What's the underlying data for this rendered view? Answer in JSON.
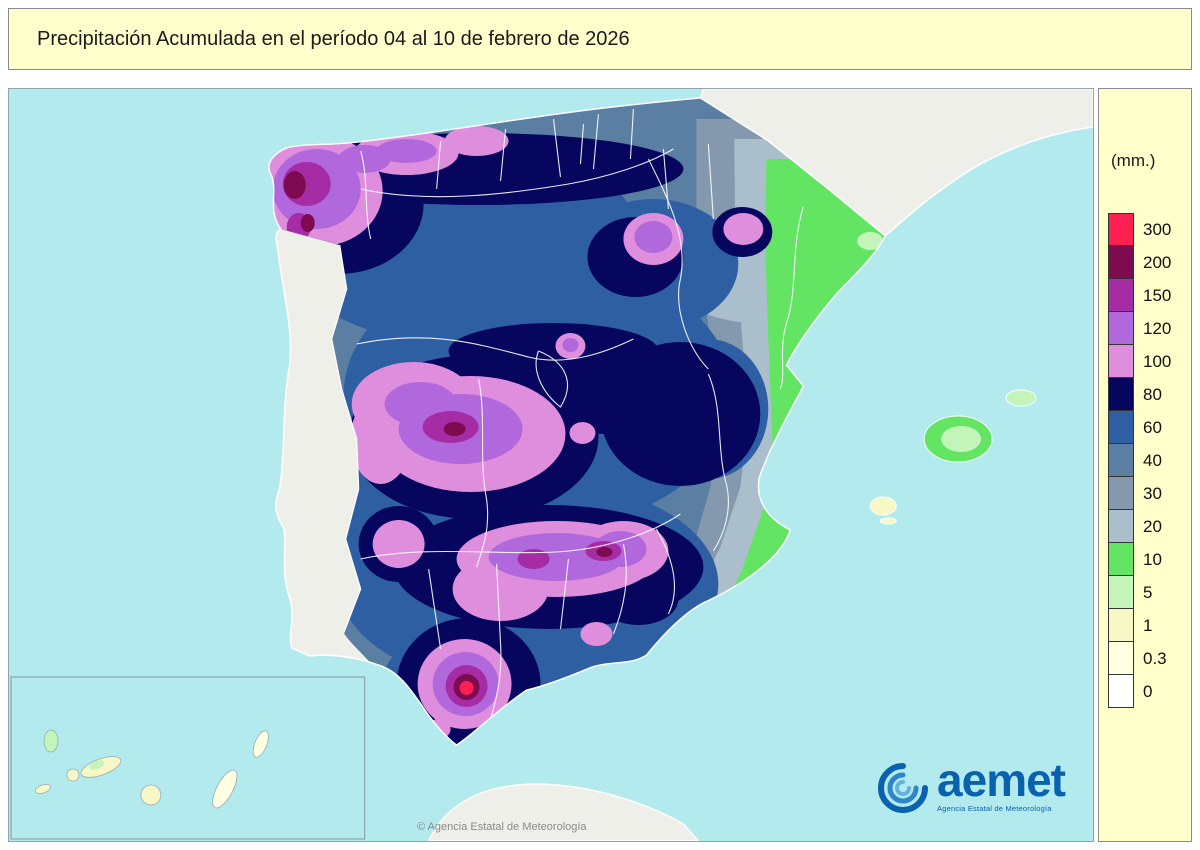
{
  "title": "Precipitación Acumulada en el período 04 al 10 de febrero de 2026",
  "legend": {
    "unit_label": "(mm.)",
    "levels": [
      {
        "value": "300",
        "color": "#FF2052"
      },
      {
        "value": "200",
        "color": "#7E0A50"
      },
      {
        "value": "150",
        "color": "#A62CA6"
      },
      {
        "value": "120",
        "color": "#B168DC"
      },
      {
        "value": "100",
        "color": "#DE8EDC"
      },
      {
        "value": "80",
        "color": "#06065E"
      },
      {
        "value": "60",
        "color": "#2E5FA3"
      },
      {
        "value": "40",
        "color": "#5B7FA2"
      },
      {
        "value": "30",
        "color": "#8499AE"
      },
      {
        "value": "20",
        "color": "#AABFCB"
      },
      {
        "value": "10",
        "color": "#63E463"
      },
      {
        "value": "5",
        "color": "#C3F4BA"
      },
      {
        "value": "1",
        "color": "#F8F8C6"
      },
      {
        "value": "0.3",
        "color": "#FFFFE2"
      },
      {
        "value": "0",
        "color": "#FFFFFF"
      }
    ]
  },
  "map": {
    "sea_color": "#B2EAEE",
    "land_no_data_color": "#EFEFEA",
    "boundary_color": "#FFFFFF",
    "copyright": "© Agencia Estatal de Meteorología"
  },
  "logo": {
    "name": "aemet",
    "tagline": "Agencia Estatal de Meteorología"
  }
}
